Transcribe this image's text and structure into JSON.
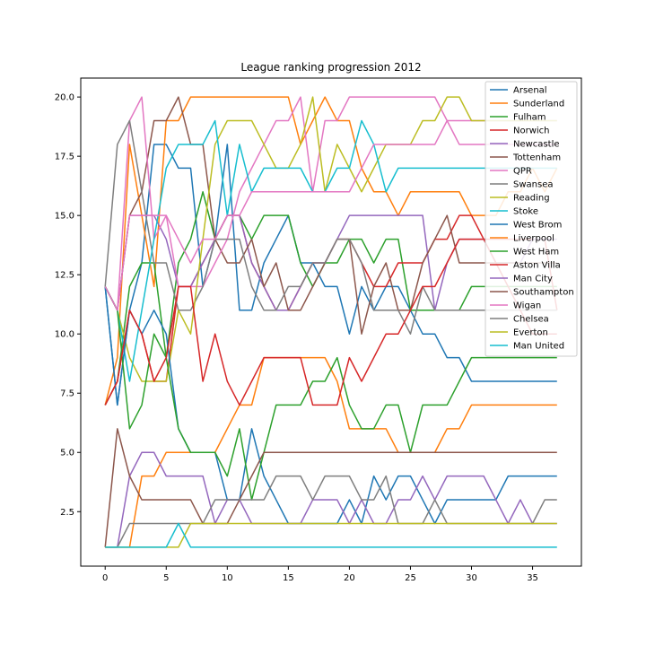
{
  "chart_data": {
    "type": "line",
    "title": "League ranking progression 2012",
    "xlabel": "",
    "ylabel": "",
    "xlim": [
      -2,
      39
    ],
    "ylim": [
      0.2,
      20.8
    ],
    "xticks": [
      0,
      5,
      10,
      15,
      20,
      25,
      30,
      35
    ],
    "yticks": [
      2.5,
      5.0,
      7.5,
      10.0,
      12.5,
      15.0,
      17.5,
      20.0
    ],
    "xtick_labels": [
      "0",
      "5",
      "10",
      "15",
      "20",
      "25",
      "30",
      "35"
    ],
    "ytick_labels": [
      "2.5",
      "5.0",
      "7.5",
      "10.0",
      "12.5",
      "15.0",
      "17.5",
      "20.0"
    ],
    "grid": false,
    "legend_position": "upper-right",
    "x": [
      0,
      1,
      2,
      3,
      4,
      5,
      6,
      7,
      8,
      9,
      10,
      11,
      12,
      13,
      14,
      15,
      16,
      17,
      18,
      19,
      20,
      21,
      22,
      23,
      24,
      25,
      26,
      27,
      28,
      29,
      30,
      31,
      32,
      33,
      34,
      35,
      36,
      37
    ],
    "series": [
      {
        "name": "Arsenal",
        "color": "#1f77b4",
        "values": [
          12,
          7,
          11,
          13,
          18,
          18,
          17,
          17,
          12,
          14,
          18,
          11,
          11,
          13,
          14,
          15,
          13,
          13,
          12,
          12,
          10,
          12,
          11,
          12,
          12,
          11,
          10,
          10,
          9,
          9,
          8,
          8,
          8,
          8,
          8,
          8,
          8,
          8
        ]
      },
      {
        "name": "Sunderland",
        "color": "#ff7f0e",
        "values": [
          7,
          9,
          18,
          15,
          12,
          19,
          19,
          20,
          20,
          20,
          20,
          20,
          20,
          20,
          20,
          20,
          18,
          19,
          20,
          19,
          19,
          17,
          16,
          16,
          15,
          16,
          16,
          16,
          16,
          16,
          15,
          15,
          15,
          16,
          16,
          17,
          16,
          17
        ]
      },
      {
        "name": "Fulham",
        "color": "#2ca02c",
        "values": [
          7,
          8,
          12,
          13,
          13,
          9,
          13,
          14,
          16,
          14,
          15,
          15,
          14,
          15,
          15,
          15,
          13,
          12,
          13,
          13,
          14,
          14,
          13,
          14,
          14,
          11,
          11,
          11,
          11,
          11,
          12,
          12,
          12,
          12,
          12,
          12,
          12,
          12
        ]
      },
      {
        "name": "Norwich",
        "color": "#d62728",
        "values": [
          7,
          8,
          11,
          10,
          8,
          8,
          12,
          12,
          13,
          14,
          15,
          15,
          13,
          12,
          11,
          11,
          12,
          13,
          13,
          14,
          14,
          13,
          12,
          12,
          13,
          13,
          13,
          14,
          14,
          15,
          15,
          14,
          14,
          14,
          14,
          14,
          14,
          11
        ]
      },
      {
        "name": "Newcastle",
        "color": "#9467bd",
        "values": [
          12,
          11,
          15,
          15,
          15,
          14,
          12,
          12,
          13,
          14,
          15,
          15,
          13,
          12,
          11,
          11,
          12,
          13,
          13,
          14,
          15,
          15,
          15,
          15,
          15,
          15,
          15,
          11,
          13,
          14,
          14,
          14,
          13,
          13,
          13,
          14,
          14,
          14
        ]
      },
      {
        "name": "Tottenham",
        "color": "#8c564b",
        "values": [
          12,
          11,
          15,
          16,
          19,
          19,
          20,
          18,
          18,
          14,
          13,
          13,
          14,
          12,
          13,
          11,
          11,
          12,
          13,
          14,
          14,
          10,
          12,
          13,
          11,
          11,
          13,
          14,
          15,
          13,
          13,
          13,
          13,
          13,
          13,
          13,
          13,
          13
        ]
      },
      {
        "name": "QPR",
        "color": "#e377c2",
        "values": [
          12,
          11,
          19,
          20,
          14,
          15,
          12,
          12,
          12,
          13,
          14,
          16,
          17,
          18,
          19,
          19,
          20,
          16,
          19,
          19,
          20,
          20,
          20,
          20,
          20,
          20,
          20,
          20,
          19,
          19,
          19,
          19,
          19,
          19,
          19,
          19,
          19,
          19
        ]
      },
      {
        "name": "Swansea",
        "color": "#7f7f7f",
        "values": [
          12,
          18,
          19,
          16,
          13,
          13,
          11,
          11,
          12,
          14,
          14,
          14,
          12,
          11,
          11,
          12,
          12,
          13,
          13,
          14,
          14,
          13,
          11,
          11,
          11,
          10,
          12,
          11,
          11,
          11,
          11,
          11,
          11,
          11,
          11,
          11,
          11,
          11
        ]
      },
      {
        "name": "Reading",
        "color": "#bcbd22",
        "values": [
          12,
          11,
          9,
          8,
          8,
          8,
          11,
          10,
          14,
          18,
          19,
          19,
          19,
          18,
          17,
          17,
          18,
          20,
          16,
          18,
          17,
          16,
          17,
          18,
          18,
          18,
          19,
          19,
          20,
          20,
          19,
          19,
          19,
          19,
          19,
          19,
          19,
          19
        ]
      },
      {
        "name": "Stoke",
        "color": "#17becf",
        "values": [
          12,
          11,
          8,
          11,
          14,
          17,
          18,
          18,
          18,
          19,
          15,
          18,
          16,
          17,
          17,
          17,
          17,
          16,
          16,
          17,
          17,
          19,
          18,
          16,
          17,
          17,
          17,
          17,
          17,
          17,
          17,
          17,
          17,
          17,
          17,
          17,
          17,
          17
        ]
      },
      {
        "name": "West Brom",
        "color": "#1f77b4",
        "values": [
          12,
          7,
          11,
          10,
          11,
          10,
          6,
          5,
          5,
          5,
          3,
          3,
          6,
          4,
          3,
          2,
          2,
          2,
          2,
          2,
          3,
          2,
          4,
          3,
          4,
          4,
          3,
          2,
          3,
          3,
          3,
          3,
          3,
          4,
          4,
          4,
          4,
          4
        ]
      },
      {
        "name": "Liverpool",
        "color": "#ff7f0e",
        "values": [
          1,
          1,
          1,
          4,
          4,
          5,
          5,
          5,
          5,
          5,
          6,
          7,
          7,
          9,
          9,
          9,
          9,
          9,
          9,
          8,
          6,
          6,
          6,
          6,
          5,
          5,
          5,
          5,
          6,
          6,
          7,
          7,
          7,
          7,
          7,
          7,
          7,
          7
        ]
      },
      {
        "name": "West Ham",
        "color": "#2ca02c",
        "values": [
          12,
          11,
          6,
          7,
          10,
          9,
          6,
          5,
          5,
          5,
          4,
          6,
          3,
          5,
          7,
          7,
          7,
          8,
          8,
          9,
          7,
          6,
          6,
          7,
          7,
          5,
          7,
          7,
          7,
          8,
          9,
          9,
          9,
          9,
          9,
          9,
          9,
          9
        ]
      },
      {
        "name": "Aston Villa",
        "color": "#d62728",
        "values": [
          7,
          8,
          11,
          10,
          8,
          9,
          12,
          12,
          8,
          10,
          8,
          7,
          8,
          9,
          9,
          9,
          9,
          7,
          7,
          7,
          9,
          8,
          9,
          10,
          10,
          11,
          12,
          12,
          13,
          14,
          14,
          14,
          13,
          12,
          11,
          10,
          10,
          10
        ]
      },
      {
        "name": "Man City",
        "color": "#9467bd",
        "values": [
          1,
          1,
          4,
          5,
          5,
          4,
          4,
          4,
          4,
          2,
          3,
          3,
          2,
          2,
          2,
          2,
          2,
          3,
          3,
          3,
          2,
          3,
          2,
          2,
          3,
          3,
          4,
          3,
          4,
          4,
          4,
          4,
          3,
          2,
          3,
          2,
          2,
          2
        ]
      },
      {
        "name": "Southampton",
        "color": "#8c564b",
        "values": [
          1,
          6,
          4,
          3,
          3,
          3,
          3,
          3,
          2,
          2,
          2,
          3,
          4,
          5,
          5,
          5,
          5,
          5,
          5,
          5,
          5,
          5,
          5,
          5,
          5,
          5,
          5,
          5,
          5,
          5,
          5,
          5,
          5,
          5,
          5,
          5,
          5,
          5
        ]
      },
      {
        "name": "Wigan",
        "color": "#e377c2",
        "values": [
          12,
          11,
          15,
          15,
          15,
          15,
          14,
          13,
          14,
          14,
          15,
          15,
          16,
          16,
          16,
          16,
          16,
          16,
          16,
          16,
          16,
          17,
          18,
          18,
          18,
          18,
          18,
          18,
          19,
          18,
          18,
          18,
          18,
          18,
          18,
          18,
          18,
          18
        ]
      },
      {
        "name": "Chelsea",
        "color": "#7f7f7f",
        "values": [
          1,
          1,
          2,
          2,
          2,
          2,
          2,
          2,
          2,
          3,
          3,
          3,
          3,
          3,
          4,
          4,
          4,
          3,
          4,
          4,
          4,
          3,
          3,
          4,
          2,
          2,
          2,
          3,
          2,
          2,
          2,
          2,
          2,
          2,
          2,
          2,
          3,
          3
        ]
      },
      {
        "name": "Everton",
        "color": "#bcbd22",
        "values": [
          1,
          1,
          1,
          1,
          1,
          1,
          1,
          2,
          2,
          2,
          2,
          2,
          2,
          2,
          2,
          2,
          2,
          2,
          2,
          2,
          2,
          2,
          2,
          2,
          2,
          2,
          2,
          2,
          2,
          2,
          2,
          2,
          2,
          2,
          2,
          2,
          2,
          2
        ]
      },
      {
        "name": "Man United",
        "color": "#17becf",
        "values": [
          1,
          1,
          1,
          1,
          1,
          1,
          2,
          1,
          1,
          1,
          1,
          1,
          1,
          1,
          1,
          1,
          1,
          1,
          1,
          1,
          1,
          1,
          1,
          1,
          1,
          1,
          1,
          1,
          1,
          1,
          1,
          1,
          1,
          1,
          1,
          1,
          1,
          1
        ]
      }
    ]
  }
}
